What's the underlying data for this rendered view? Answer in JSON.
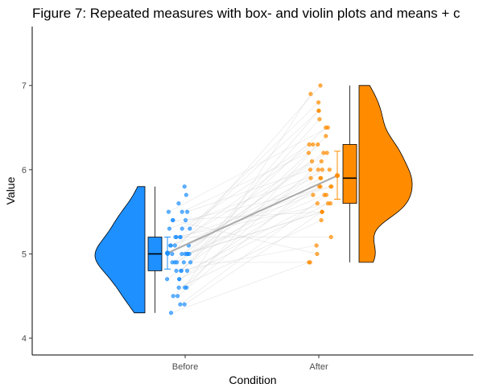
{
  "chart_data": {
    "type": "violin",
    "title": "Figure 7: Repeated measures with box- and violin plots and means + c",
    "xlabel": "Condition",
    "ylabel": "Value",
    "categories": [
      "Before",
      "After"
    ],
    "ylim": [
      3.8,
      7.7
    ],
    "yticks": [
      4,
      5,
      6,
      7
    ],
    "grid": false,
    "legend": "none",
    "series": [
      {
        "category": "Before",
        "color": "#1E90FF",
        "points": [
          4.3,
          4.4,
          4.4,
          4.5,
          4.5,
          4.6,
          4.6,
          4.6,
          4.7,
          4.7,
          4.7,
          4.8,
          4.8,
          4.8,
          4.8,
          4.9,
          4.9,
          4.9,
          4.9,
          4.9,
          5.0,
          5.0,
          5.0,
          5.0,
          5.0,
          5.0,
          5.0,
          5.1,
          5.1,
          5.1,
          5.1,
          5.2,
          5.2,
          5.2,
          5.2,
          5.3,
          5.3,
          5.3,
          5.4,
          5.4,
          5.4,
          5.5,
          5.5,
          5.5,
          5.6,
          5.7,
          5.8
        ],
        "box": {
          "min": 4.3,
          "q1": 4.8,
          "median": 5.0,
          "q3": 5.2,
          "max": 5.8
        },
        "mean": 5.01,
        "ci": [
          4.82,
          5.2
        ],
        "violin_range": [
          4.3,
          5.8
        ]
      },
      {
        "category": "After",
        "color": "#FF8C00",
        "points": [
          4.9,
          4.9,
          5.0,
          5.1,
          5.2,
          5.4,
          5.5,
          5.5,
          5.5,
          5.5,
          5.6,
          5.6,
          5.6,
          5.7,
          5.7,
          5.7,
          5.8,
          5.8,
          5.8,
          5.8,
          5.9,
          5.9,
          5.9,
          6.0,
          6.0,
          6.0,
          6.0,
          6.1,
          6.1,
          6.2,
          6.2,
          6.2,
          6.3,
          6.3,
          6.3,
          6.4,
          6.5,
          6.5,
          6.6,
          6.7,
          6.7,
          6.8,
          6.9,
          7.0
        ],
        "box": {
          "min": 4.9,
          "q1": 5.6,
          "median": 5.9,
          "q3": 6.3,
          "max": 7.0
        },
        "mean": 5.93,
        "ci": [
          5.65,
          6.22
        ],
        "violin_range": [
          4.9,
          7.0
        ]
      }
    ]
  }
}
